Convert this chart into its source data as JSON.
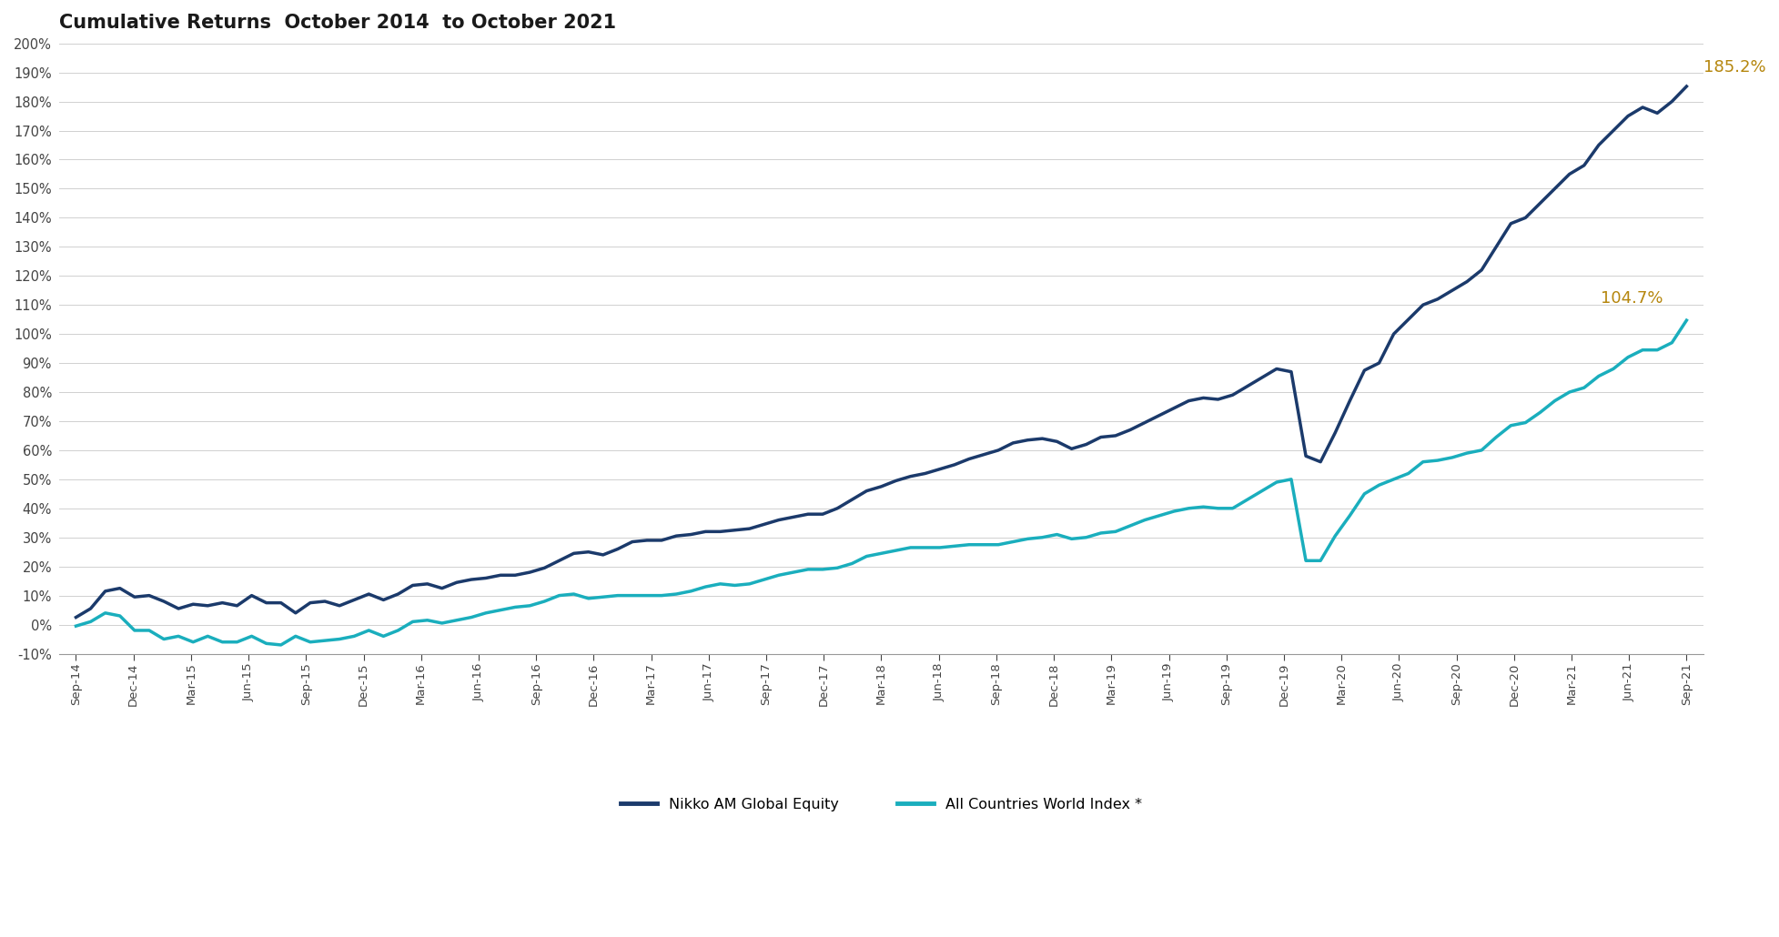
{
  "title": "Cumulative Returns  October 2014  to October 2021",
  "title_fontsize": 15,
  "title_fontweight": "bold",
  "background_color": "#ffffff",
  "line1_color": "#1b3a6b",
  "line2_color": "#1aaebd",
  "line1_label": "Nikko AM Global Equity",
  "line2_label": "All Countries World Index *",
  "line1_end_label": "185.2%",
  "line2_end_label": "104.7%",
  "annotation_color": "#b5860d",
  "ylim": [
    -0.1,
    2.0
  ],
  "yticks": [
    -0.1,
    0.0,
    0.1,
    0.2,
    0.3,
    0.4,
    0.5,
    0.6,
    0.7,
    0.8,
    0.9,
    1.0,
    1.1,
    1.2,
    1.3,
    1.4,
    1.5,
    1.6,
    1.7,
    1.8,
    1.9,
    2.0
  ],
  "xtick_labels": [
    "Sep-14",
    "Dec-14",
    "Mar-15",
    "Jun-15",
    "Sep-15",
    "Dec-15",
    "Mar-16",
    "Jun-16",
    "Sep-16",
    "Dec-16",
    "Mar-17",
    "Jun-17",
    "Sep-17",
    "Dec-17",
    "Mar-18",
    "Jun-18",
    "Sep-18",
    "Dec-18",
    "Mar-19",
    "Jun-19",
    "Sep-19",
    "Dec-19",
    "Mar-20",
    "Jun-20",
    "Sep-20",
    "Dec-20",
    "Mar-21",
    "Jun-21",
    "Sep-21"
  ],
  "nikko": [
    0.025,
    0.055,
    0.115,
    0.125,
    0.095,
    0.1,
    0.08,
    0.055,
    0.07,
    0.065,
    0.075,
    0.065,
    0.1,
    0.075,
    0.075,
    0.04,
    0.075,
    0.08,
    0.065,
    0.085,
    0.105,
    0.085,
    0.105,
    0.135,
    0.14,
    0.125,
    0.145,
    0.155,
    0.16,
    0.17,
    0.17,
    0.18,
    0.195,
    0.22,
    0.245,
    0.25,
    0.24,
    0.26,
    0.285,
    0.29,
    0.29,
    0.305,
    0.31,
    0.32,
    0.32,
    0.325,
    0.33,
    0.345,
    0.36,
    0.37,
    0.38,
    0.38,
    0.4,
    0.43,
    0.46,
    0.475,
    0.495,
    0.51,
    0.52,
    0.535,
    0.55,
    0.57,
    0.585,
    0.6,
    0.625,
    0.635,
    0.64,
    0.63,
    0.605,
    0.62,
    0.645,
    0.65,
    0.67,
    0.695,
    0.72,
    0.745,
    0.77,
    0.78,
    0.775,
    0.79,
    0.82,
    0.85,
    0.88,
    0.87,
    0.58,
    0.56,
    0.66,
    0.77,
    0.875,
    0.9,
    1.0,
    1.05,
    1.1,
    1.12,
    1.15,
    1.18,
    1.22,
    1.3,
    1.38,
    1.4,
    1.45,
    1.5,
    1.55,
    1.58,
    1.65,
    1.7,
    1.75,
    1.78,
    1.76,
    1.8,
    1.852
  ],
  "acwi": [
    -0.005,
    0.01,
    0.04,
    0.03,
    -0.02,
    -0.02,
    -0.05,
    -0.04,
    -0.06,
    -0.04,
    -0.06,
    -0.06,
    -0.04,
    -0.065,
    -0.07,
    -0.04,
    -0.06,
    -0.055,
    -0.05,
    -0.04,
    -0.02,
    -0.04,
    -0.02,
    0.01,
    0.015,
    0.005,
    0.015,
    0.025,
    0.04,
    0.05,
    0.06,
    0.065,
    0.08,
    0.1,
    0.105,
    0.09,
    0.095,
    0.1,
    0.1,
    0.1,
    0.1,
    0.105,
    0.115,
    0.13,
    0.14,
    0.135,
    0.14,
    0.155,
    0.17,
    0.18,
    0.19,
    0.19,
    0.195,
    0.21,
    0.235,
    0.245,
    0.255,
    0.265,
    0.265,
    0.265,
    0.27,
    0.275,
    0.275,
    0.275,
    0.285,
    0.295,
    0.3,
    0.31,
    0.295,
    0.3,
    0.315,
    0.32,
    0.34,
    0.36,
    0.375,
    0.39,
    0.4,
    0.405,
    0.4,
    0.4,
    0.43,
    0.46,
    0.49,
    0.5,
    0.22,
    0.22,
    0.305,
    0.375,
    0.45,
    0.48,
    0.5,
    0.52,
    0.56,
    0.565,
    0.575,
    0.59,
    0.6,
    0.645,
    0.685,
    0.695,
    0.73,
    0.77,
    0.8,
    0.815,
    0.855,
    0.88,
    0.92,
    0.945,
    0.945,
    0.97,
    1.047
  ]
}
